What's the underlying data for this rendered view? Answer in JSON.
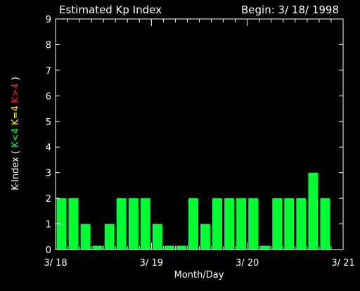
{
  "colors": {
    "background": "#000000",
    "axis": "#ffffff",
    "text": "#ffffff",
    "bar_below_4": "#00ff33",
    "bar_equal_4": "#ffff00",
    "bar_above_4": "#ff2222"
  },
  "header": {
    "title": "Estimated Kp Index",
    "begin": "Begin: 3/ 18/ 1998"
  },
  "chart_data": {
    "type": "bar",
    "title": "Estimated Kp Index",
    "xlabel": "Month/Day",
    "ylabel": {
      "prefix": "K-Index ( ",
      "parts": [
        {
          "text": "K<4",
          "color": "#00ff33"
        },
        {
          "text": "K=4",
          "color": "#ffff00"
        },
        {
          "text": "K>4",
          "color": "#ff2222"
        }
      ],
      "suffix": " )"
    },
    "ylim": [
      0,
      9
    ],
    "yticks": [
      "0",
      "1",
      "2",
      "3",
      "4",
      "5",
      "6",
      "7",
      "8",
      "9"
    ],
    "xlim": [
      0,
      24
    ],
    "xticks": [
      {
        "x": 0,
        "label": "3/ 18"
      },
      {
        "x": 8,
        "label": "3/ 19"
      },
      {
        "x": 16,
        "label": "3/ 20"
      },
      {
        "x": 24,
        "label": "3/ 21"
      }
    ],
    "interval_hours": 3,
    "values": [
      2,
      2,
      1,
      0.15,
      1,
      2,
      2,
      2,
      1,
      0.15,
      0.15,
      2,
      1,
      2,
      2,
      2,
      2,
      0.15,
      2,
      2,
      2,
      3,
      2
    ],
    "grid": false
  }
}
